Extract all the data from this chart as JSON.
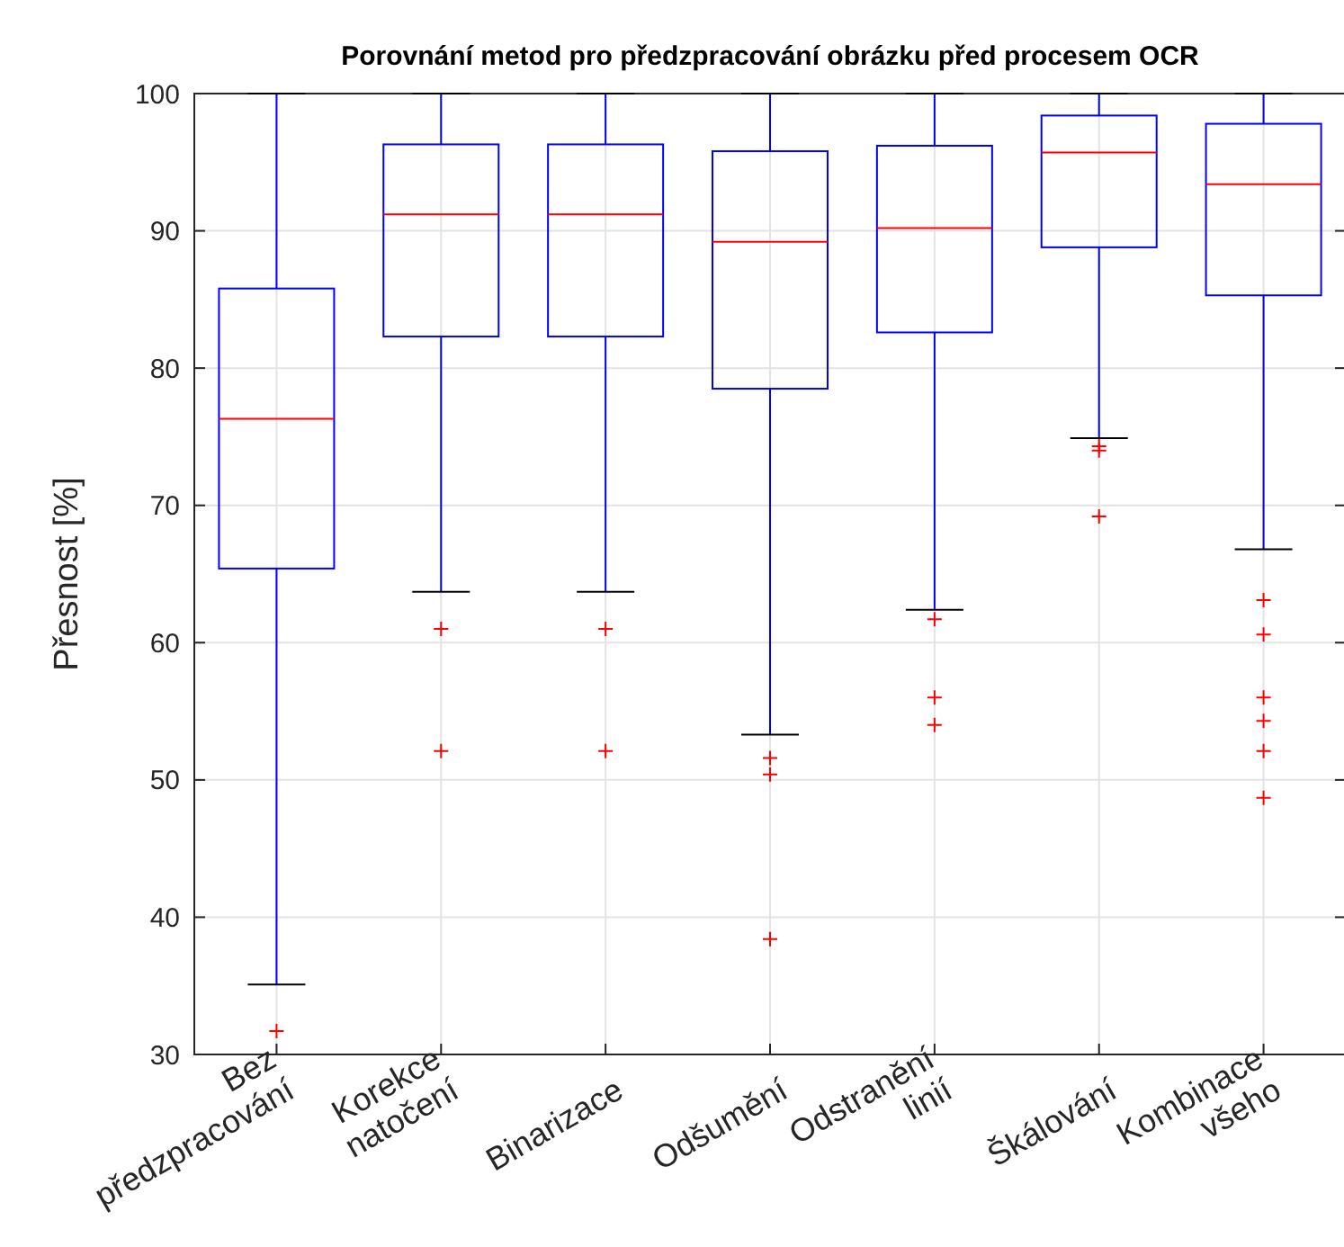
{
  "chart_data": {
    "type": "box",
    "title": "Porovnání metod pro předzpracování obrázku před procesem OCR",
    "ylabel": "Přesnost [%]",
    "categories": [
      "Bez\npředzpracování",
      "Korekce\nnatočení",
      "Binarizace",
      "Odšumění",
      "Odstranění\nlinií",
      "Škálování",
      "Kombinace\nvšeho"
    ],
    "ylim": [
      30,
      100
    ],
    "yticks": [
      30,
      40,
      50,
      60,
      70,
      80,
      90,
      100
    ],
    "grid": true,
    "marker": "cross",
    "series": [
      {
        "color": "#0000ff",
        "boxes": [
          {
            "low": 35.1,
            "q1": 65.4,
            "median": 76.3,
            "q3": 85.8,
            "high": 100,
            "outliers": [
              31.7
            ]
          },
          {
            "low": 63.7,
            "q1": 82.3,
            "median": 91.2,
            "q3": 96.3,
            "high": 100,
            "outliers": [
              61.0,
              52.1
            ]
          },
          {
            "low": 63.7,
            "q1": 82.3,
            "median": 91.2,
            "q3": 96.3,
            "high": 100,
            "outliers": [
              61.0,
              52.1
            ]
          },
          {
            "low": 53.3,
            "q1": 78.5,
            "median": 89.2,
            "q3": 95.8,
            "high": 100,
            "outliers": [
              51.6,
              50.4,
              38.4
            ]
          },
          {
            "low": 62.4,
            "q1": 82.6,
            "median": 90.2,
            "q3": 96.2,
            "high": 100,
            "outliers": [
              61.7,
              56.0,
              54.0
            ]
          },
          {
            "low": 74.9,
            "q1": 88.8,
            "median": 95.7,
            "q3": 98.4,
            "high": 100,
            "outliers": [
              74.3,
              74.0,
              69.2
            ]
          },
          {
            "low": 66.8,
            "q1": 85.3,
            "median": 93.4,
            "q3": 97.8,
            "high": 100,
            "outliers": [
              63.1,
              60.6,
              56.0,
              54.3,
              52.1,
              48.7
            ]
          }
        ]
      }
    ]
  }
}
